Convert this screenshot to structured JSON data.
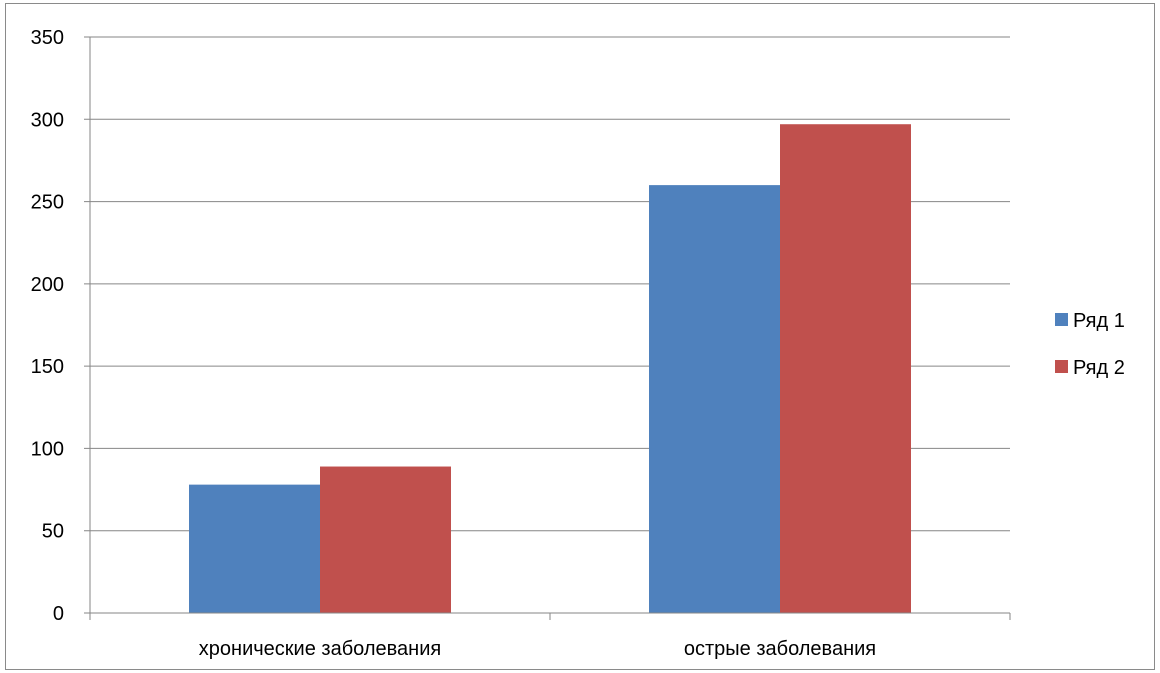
{
  "chart_data": {
    "type": "bar",
    "title": "",
    "xlabel": "",
    "ylabel": "",
    "categories": [
      "хронические заболевания",
      "острые заболевания"
    ],
    "series": [
      {
        "name": "Ряд 1",
        "values": [
          78,
          260
        ],
        "color": "#4F81BD"
      },
      {
        "name": "Ряд 2",
        "values": [
          89,
          297
        ],
        "color": "#C0504D"
      }
    ],
    "ylim": [
      0,
      350
    ],
    "yticks": [
      0,
      50,
      100,
      150,
      200,
      250,
      300,
      350
    ],
    "grid": true,
    "legend_position": "right"
  }
}
